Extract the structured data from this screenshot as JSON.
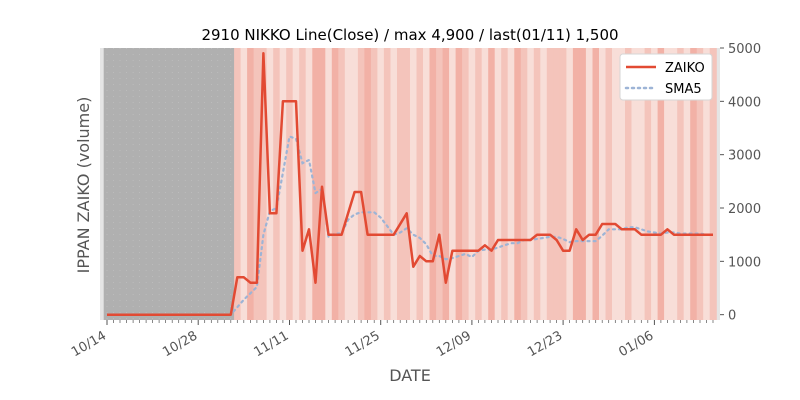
{
  "colors": {
    "zaiko": "#e24a33",
    "sma5": "#9db4d6",
    "axes_bg": "#e5e5e5",
    "dark_band": "#b0b0b0",
    "shade_light": "#f8ded8",
    "shade_mid": "#f4c4bb",
    "shade_strong": "#f2b1a6"
  },
  "chart_data": {
    "type": "line",
    "title": "2910 NIKKO Line(Close) / max 4,900 / last(01/11) 1,500",
    "xlabel": "DATE",
    "ylabel": "IPPAN ZAIKO (volume)",
    "ylim": [
      -100,
      5000
    ],
    "y_ticks": [
      0,
      1000,
      2000,
      3000,
      4000,
      5000
    ],
    "y_tick_labels": [
      "0",
      "1000",
      "2000",
      "3000",
      "4000",
      "5000"
    ],
    "y_axis_side": "right",
    "x_tick_labels": [
      "10/14",
      "10/28",
      "11/11",
      "11/25",
      "12/09",
      "12/23",
      "01/06"
    ],
    "x_tick_index": [
      0,
      14,
      28,
      42,
      56,
      70,
      84
    ],
    "x_start": "10/14",
    "x_end": "01/11",
    "grid": false,
    "legend_position": "top-right",
    "series": [
      {
        "name": "ZAIKO",
        "style": "solid",
        "values": [
          0,
          0,
          0,
          0,
          0,
          0,
          0,
          0,
          0,
          0,
          0,
          0,
          0,
          0,
          0,
          0,
          0,
          0,
          0,
          0,
          700,
          700,
          600,
          600,
          4900,
          1900,
          1900,
          4000,
          4000,
          4000,
          1200,
          1600,
          600,
          2400,
          1500,
          1500,
          1500,
          1900,
          2300,
          2300,
          1500,
          1500,
          1500,
          1500,
          1500,
          1700,
          1900,
          900,
          1100,
          1000,
          1000,
          1500,
          600,
          1200,
          1200,
          1200,
          1200,
          1200,
          1300,
          1200,
          1400,
          1400,
          1400,
          1400,
          1400,
          1400,
          1500,
          1500,
          1500,
          1400,
          1200,
          1200,
          1600,
          1400,
          1500,
          1500,
          1700,
          1700,
          1700,
          1600,
          1600,
          1600,
          1500,
          1500,
          1500,
          1500,
          1600,
          1500,
          1500,
          1500,
          1500,
          1500,
          1500,
          1500
        ]
      },
      {
        "name": "SMA5",
        "style": "dotted",
        "values": [
          null,
          null,
          null,
          null,
          0,
          0,
          0,
          0,
          0,
          0,
          0,
          0,
          0,
          0,
          0,
          0,
          0,
          0,
          0,
          0,
          140,
          280,
          400,
          520,
          1500,
          1940,
          2000,
          2660,
          3340,
          3300,
          2840,
          2900,
          2280,
          2360,
          1460,
          1520,
          1520,
          1780,
          1880,
          1920,
          1920,
          1920,
          1820,
          1660,
          1500,
          1540,
          1620,
          1500,
          1440,
          1320,
          1100,
          1100,
          1040,
          1060,
          1100,
          1140,
          1080,
          1200,
          1220,
          1220,
          1260,
          1300,
          1340,
          1340,
          1400,
          1400,
          1420,
          1440,
          1460,
          1460,
          1420,
          1360,
          1380,
          1380,
          1380,
          1380,
          1480,
          1600,
          1600,
          1600,
          1640,
          1640,
          1600,
          1560,
          1540,
          1520,
          1540,
          1540,
          1520,
          1520,
          1520,
          1520,
          1500,
          1500
        ]
      }
    ]
  }
}
